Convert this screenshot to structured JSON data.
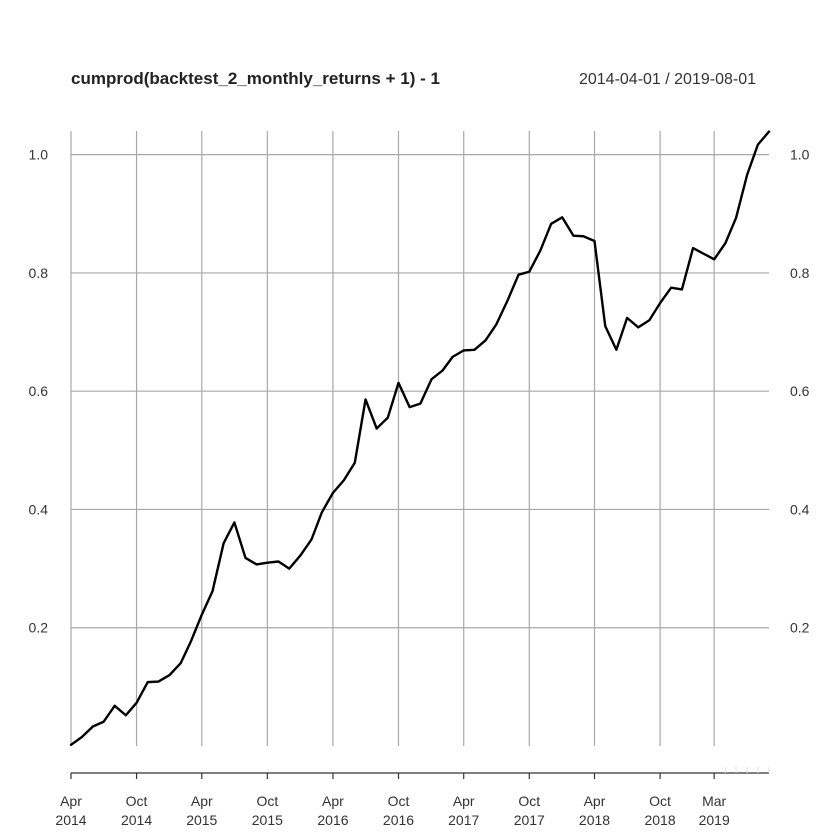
{
  "header": {
    "title": "cumprod(backtest_2_monthly_returns + 1) - 1",
    "date_range": "2014-04-01 / 2019-08-01"
  },
  "chart_data": {
    "type": "line",
    "title": "cumprod(backtest_2_monthly_returns + 1) - 1",
    "xlabel": "",
    "ylabel": "",
    "xlim": [
      "2014-04-01",
      "2019-08-01"
    ],
    "ylim": [
      0.0,
      1.04
    ],
    "grid": true,
    "y_ticks": [
      {
        "value": 0.2,
        "label": "0.2"
      },
      {
        "value": 0.4,
        "label": "0.4"
      },
      {
        "value": 0.6,
        "label": "0.6"
      },
      {
        "value": 0.8,
        "label": "0.8"
      },
      {
        "value": 1.0,
        "label": "1.0"
      }
    ],
    "x_ticks": [
      {
        "date": "2014-04-01",
        "label1": "Apr",
        "label2": "2014"
      },
      {
        "date": "2014-10-01",
        "label1": "Oct",
        "label2": "2014"
      },
      {
        "date": "2015-04-01",
        "label1": "Apr",
        "label2": "2015"
      },
      {
        "date": "2015-10-01",
        "label1": "Oct",
        "label2": "2015"
      },
      {
        "date": "2016-04-01",
        "label1": "Apr",
        "label2": "2016"
      },
      {
        "date": "2016-10-01",
        "label1": "Oct",
        "label2": "2016"
      },
      {
        "date": "2017-04-01",
        "label1": "Apr",
        "label2": "2017"
      },
      {
        "date": "2017-10-01",
        "label1": "Oct",
        "label2": "2017"
      },
      {
        "date": "2018-04-01",
        "label1": "Apr",
        "label2": "2018"
      },
      {
        "date": "2018-10-01",
        "label1": "Oct",
        "label2": "2018"
      },
      {
        "date": "2019-03-01",
        "label1": "Mar",
        "label2": "2019"
      }
    ],
    "series": [
      {
        "color": "#000000",
        "points": [
          [
            "2014-04-01",
            0.002
          ],
          [
            "2014-05-01",
            0.015
          ],
          [
            "2014-06-01",
            0.033
          ],
          [
            "2014-07-01",
            0.041
          ],
          [
            "2014-08-01",
            0.068
          ],
          [
            "2014-09-01",
            0.052
          ],
          [
            "2014-10-01",
            0.073
          ],
          [
            "2014-11-01",
            0.108
          ],
          [
            "2014-12-01",
            0.109
          ],
          [
            "2015-01-01",
            0.12
          ],
          [
            "2015-02-01",
            0.14
          ],
          [
            "2015-03-01",
            0.176
          ],
          [
            "2015-04-01",
            0.222
          ],
          [
            "2015-05-01",
            0.262
          ],
          [
            "2015-06-01",
            0.343
          ],
          [
            "2015-07-01",
            0.378
          ],
          [
            "2015-08-01",
            0.318
          ],
          [
            "2015-09-01",
            0.307
          ],
          [
            "2015-10-01",
            0.31
          ],
          [
            "2015-11-01",
            0.312
          ],
          [
            "2015-12-01",
            0.3
          ],
          [
            "2016-01-01",
            0.322
          ],
          [
            "2016-02-01",
            0.349
          ],
          [
            "2016-03-01",
            0.395
          ],
          [
            "2016-04-01",
            0.428
          ],
          [
            "2016-05-01",
            0.449
          ],
          [
            "2016-06-01",
            0.479
          ],
          [
            "2016-07-01",
            0.586
          ],
          [
            "2016-08-01",
            0.537
          ],
          [
            "2016-09-01",
            0.555
          ],
          [
            "2016-10-01",
            0.614
          ],
          [
            "2016-11-01",
            0.573
          ],
          [
            "2016-12-01",
            0.579
          ],
          [
            "2017-01-01",
            0.62
          ],
          [
            "2017-02-01",
            0.635
          ],
          [
            "2017-03-01",
            0.658
          ],
          [
            "2017-04-01",
            0.669
          ],
          [
            "2017-05-01",
            0.67
          ],
          [
            "2017-06-01",
            0.686
          ],
          [
            "2017-07-01",
            0.713
          ],
          [
            "2017-08-01",
            0.753
          ],
          [
            "2017-09-01",
            0.797
          ],
          [
            "2017-10-01",
            0.802
          ],
          [
            "2017-11-01",
            0.838
          ],
          [
            "2017-12-01",
            0.883
          ],
          [
            "2018-01-01",
            0.894
          ],
          [
            "2018-02-01",
            0.863
          ],
          [
            "2018-03-01",
            0.862
          ],
          [
            "2018-04-01",
            0.854
          ],
          [
            "2018-05-01",
            0.71
          ],
          [
            "2018-06-01",
            0.67
          ],
          [
            "2018-07-01",
            0.724
          ],
          [
            "2018-08-01",
            0.708
          ],
          [
            "2018-09-01",
            0.72
          ],
          [
            "2018-10-01",
            0.749
          ],
          [
            "2018-11-01",
            0.775
          ],
          [
            "2018-12-01",
            0.772
          ],
          [
            "2019-01-01",
            0.842
          ],
          [
            "2019-02-01",
            0.832
          ],
          [
            "2019-03-01",
            0.823
          ],
          [
            "2019-04-01",
            0.85
          ],
          [
            "2019-05-01",
            0.893
          ],
          [
            "2019-06-01",
            0.966
          ],
          [
            "2019-07-01",
            1.017
          ],
          [
            "2019-08-01",
            1.039
          ]
        ]
      }
    ]
  }
}
